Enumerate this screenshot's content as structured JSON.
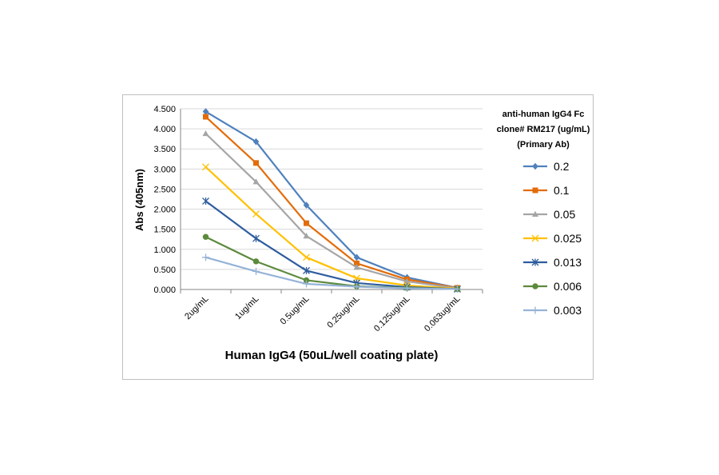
{
  "chart_data": {
    "type": "line",
    "title": "",
    "xlabel": "Human IgG4 (50uL/well coating plate)",
    "ylabel": "Abs (405nm)",
    "categories": [
      "2ug/mL",
      "1ug/mL",
      "0.5ug/mL",
      "0.25ug/mL",
      "0.125ug/mL",
      "0.063ug/mL"
    ],
    "yticks": [
      "0.000",
      "0.500",
      "1.000",
      "1.500",
      "2.000",
      "2.500",
      "3.000",
      "3.500",
      "4.000",
      "4.500"
    ],
    "ylim": [
      0,
      4.5
    ],
    "grid": "horizontal",
    "legend_position": "right",
    "legend_title": [
      "anti-human IgG4 Fc",
      "clone# RM217 (ug/mL)",
      "(Primary Ab)"
    ],
    "series": [
      {
        "name": "0.2",
        "color": "#4f81bd",
        "marker": "diamond",
        "values": [
          4.43,
          3.68,
          2.1,
          0.8,
          0.3,
          0.04
        ]
      },
      {
        "name": "0.1",
        "color": "#e36c0a",
        "marker": "square",
        "values": [
          4.3,
          3.15,
          1.65,
          0.65,
          0.25,
          0.04
        ]
      },
      {
        "name": "0.05",
        "color": "#a5a5a5",
        "marker": "triangle",
        "values": [
          3.88,
          2.68,
          1.33,
          0.55,
          0.2,
          0.03
        ]
      },
      {
        "name": "0.025",
        "color": "#ffc000",
        "marker": "x",
        "values": [
          3.05,
          1.88,
          0.8,
          0.28,
          0.1,
          0.02
        ]
      },
      {
        "name": "0.013",
        "color": "#2e5d9e",
        "marker": "star",
        "values": [
          2.2,
          1.27,
          0.47,
          0.16,
          0.06,
          0.01
        ]
      },
      {
        "name": "0.006",
        "color": "#5c8a3c",
        "marker": "circle",
        "values": [
          1.31,
          0.7,
          0.23,
          0.08,
          0.04,
          0.01
        ]
      },
      {
        "name": "0.003",
        "color": "#95b3d7",
        "marker": "plus",
        "values": [
          0.8,
          0.45,
          0.14,
          0.07,
          0.03,
          0.01
        ]
      }
    ]
  }
}
